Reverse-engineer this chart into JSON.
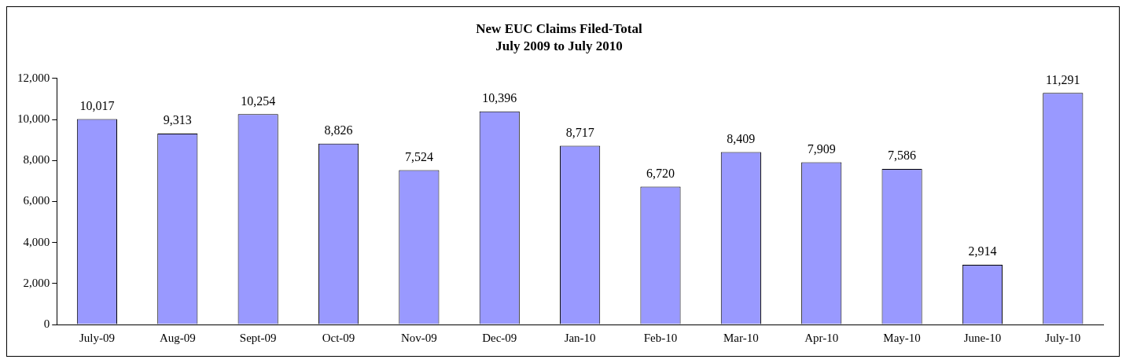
{
  "chart_data": {
    "type": "bar",
    "title": "New EUC Claims Filed-Total",
    "subtitle": "July 2009 to July 2010",
    "categories": [
      "July-09",
      "Aug-09",
      "Sept-09",
      "Oct-09",
      "Nov-09",
      "Dec-09",
      "Jan-10",
      "Feb-10",
      "Mar-10",
      "Apr-10",
      "May-10",
      "June-10",
      "July-10"
    ],
    "values": [
      10017,
      9313,
      10254,
      8826,
      7524,
      10396,
      8717,
      6720,
      8409,
      7909,
      7586,
      2914,
      11291
    ],
    "value_labels": [
      "10,017",
      "9,313",
      "10,254",
      "8,826",
      "7,524",
      "10,396",
      "8,717",
      "6,720",
      "8,409",
      "7,909",
      "7,586",
      "2,914",
      "11,291"
    ],
    "color": "#9999ff",
    "ylim": [
      0,
      12000
    ],
    "yticks": [
      0,
      {
        "value": 2000,
        "label": "2,000"
      },
      {
        "value": 4000,
        "label": "4,000"
      },
      {
        "value": 6000,
        "label": "6,000"
      },
      {
        "value": 8000,
        "label": "8,000"
      },
      {
        "value": 10000,
        "label": "10,000"
      },
      {
        "value": 12000,
        "label": "12,000"
      }
    ],
    "grid": false,
    "legend": false
  }
}
